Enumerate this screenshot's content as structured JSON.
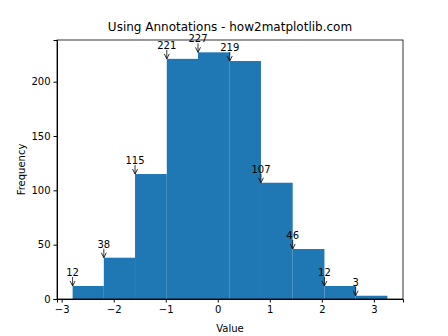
{
  "chart_data": {
    "type": "histogram",
    "title": "Using Annotations - how2matplotlib.com",
    "x_label": "Value",
    "y_label": "Frequency",
    "bins": [
      -2.79,
      -2.19,
      -1.59,
      -0.98,
      -0.38,
      0.23,
      0.83,
      1.44,
      2.05,
      2.65,
      3.26
    ],
    "values": [
      12,
      38,
      115,
      221,
      227,
      219,
      107,
      46,
      12,
      3
    ],
    "color": "#1f77b4",
    "data_labels": true,
    "xlim": [
      -3.09,
      3.56
    ],
    "xticks": [
      {
        "value": -3,
        "label": "−3"
      },
      {
        "value": -2,
        "label": "−2"
      },
      {
        "value": -1,
        "label": "−1"
      },
      0,
      1,
      2,
      3
    ],
    "ylim": [
      0,
      238.35
    ],
    "yticks": [
      0,
      50,
      100,
      150,
      200
    ],
    "grid": false
  }
}
